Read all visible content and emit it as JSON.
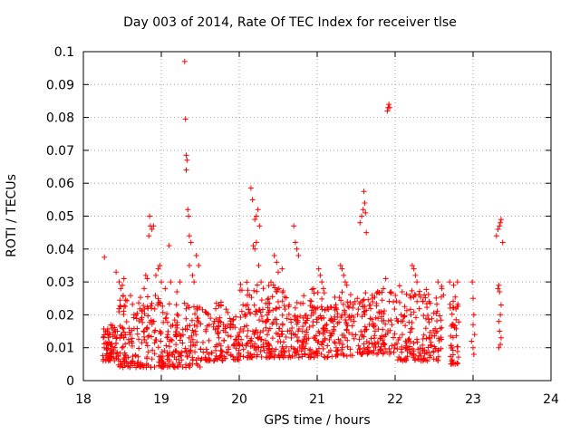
{
  "chart_data": {
    "type": "scatter",
    "title": "Day 003 of 2014, Rate Of TEC Index for receiver tlse",
    "xlabel": "GPS time / hours",
    "ylabel": "ROTI / TECUs",
    "xlim": [
      18,
      24
    ],
    "ylim": [
      0,
      0.1
    ],
    "xticks": [
      18,
      19,
      20,
      21,
      22,
      23,
      24
    ],
    "xtick_labels": [
      "18",
      "19",
      "20",
      "21",
      "22",
      "23",
      "24"
    ],
    "yticks": [
      0,
      0.01,
      0.02,
      0.03,
      0.04,
      0.05,
      0.06,
      0.07,
      0.08,
      0.09,
      0.1
    ],
    "ytick_labels": [
      "0",
      "0.01",
      "0.02",
      "0.03",
      "0.04",
      "0.05",
      "0.06",
      "0.07",
      "0.08",
      "0.09",
      "0.1"
    ],
    "grid": true,
    "marker": "+",
    "color": "#ff0000",
    "series": [
      {
        "name": "ROTI",
        "points": [
          [
            18.27,
            0.0375
          ],
          [
            18.42,
            0.033
          ],
          [
            18.46,
            0.03
          ],
          [
            18.48,
            0.028
          ],
          [
            18.5,
            0.029
          ],
          [
            18.52,
            0.031
          ],
          [
            18.78,
            0.028
          ],
          [
            18.8,
            0.032
          ],
          [
            18.82,
            0.031
          ],
          [
            18.84,
            0.044
          ],
          [
            18.85,
            0.05
          ],
          [
            18.86,
            0.047
          ],
          [
            18.88,
            0.046
          ],
          [
            18.9,
            0.047
          ],
          [
            18.93,
            0.032
          ],
          [
            18.96,
            0.034
          ],
          [
            18.98,
            0.035
          ],
          [
            19.0,
            0.03
          ],
          [
            19.05,
            0.028
          ],
          [
            19.1,
            0.041
          ],
          [
            19.12,
            0.03
          ],
          [
            19.2,
            0.027
          ],
          [
            19.24,
            0.03
          ],
          [
            19.3,
            0.097
          ],
          [
            19.31,
            0.0795
          ],
          [
            19.32,
            0.0685
          ],
          [
            19.33,
            0.067
          ],
          [
            19.32,
            0.064
          ],
          [
            19.34,
            0.052
          ],
          [
            19.35,
            0.05
          ],
          [
            19.36,
            0.044
          ],
          [
            19.38,
            0.042
          ],
          [
            19.36,
            0.035
          ],
          [
            19.4,
            0.032
          ],
          [
            19.42,
            0.03
          ],
          [
            19.45,
            0.038
          ],
          [
            19.48,
            0.035
          ],
          [
            20.15,
            0.0585
          ],
          [
            20.17,
            0.055
          ],
          [
            20.2,
            0.049
          ],
          [
            20.22,
            0.05
          ],
          [
            20.24,
            0.052
          ],
          [
            20.26,
            0.047
          ],
          [
            20.18,
            0.041
          ],
          [
            20.2,
            0.04
          ],
          [
            20.22,
            0.042
          ],
          [
            20.25,
            0.035
          ],
          [
            20.28,
            0.03
          ],
          [
            20.45,
            0.038
          ],
          [
            20.48,
            0.036
          ],
          [
            20.5,
            0.033
          ],
          [
            20.55,
            0.034
          ],
          [
            20.7,
            0.047
          ],
          [
            20.72,
            0.042
          ],
          [
            20.74,
            0.04
          ],
          [
            20.76,
            0.038
          ],
          [
            21.02,
            0.034
          ],
          [
            21.04,
            0.032
          ],
          [
            21.06,
            0.03
          ],
          [
            21.08,
            0.028
          ],
          [
            21.3,
            0.035
          ],
          [
            21.32,
            0.034
          ],
          [
            21.34,
            0.032
          ],
          [
            21.36,
            0.03
          ],
          [
            21.38,
            0.029
          ],
          [
            21.55,
            0.048
          ],
          [
            21.57,
            0.05
          ],
          [
            21.59,
            0.052
          ],
          [
            21.6,
            0.0575
          ],
          [
            21.61,
            0.054
          ],
          [
            21.62,
            0.051
          ],
          [
            21.63,
            0.045
          ],
          [
            21.9,
            0.082
          ],
          [
            21.91,
            0.083
          ],
          [
            21.92,
            0.084
          ],
          [
            21.93,
            0.083
          ],
          [
            21.88,
            0.031
          ],
          [
            21.85,
            0.028
          ],
          [
            22.22,
            0.035
          ],
          [
            22.24,
            0.034
          ],
          [
            22.26,
            0.032
          ],
          [
            22.28,
            0.03
          ],
          [
            22.55,
            0.03
          ],
          [
            22.6,
            0.028
          ],
          [
            22.62,
            0.026
          ],
          [
            22.7,
            0.03
          ],
          [
            22.75,
            0.029
          ],
          [
            22.8,
            0.03
          ],
          [
            22.99,
            0.03
          ],
          [
            23.0,
            0.025
          ],
          [
            23.01,
            0.02
          ],
          [
            23.0,
            0.017
          ],
          [
            23.02,
            0.014
          ],
          [
            22.98,
            0.012
          ],
          [
            23.0,
            0.01
          ],
          [
            23.01,
            0.008
          ],
          [
            23.3,
            0.044
          ],
          [
            23.32,
            0.046
          ],
          [
            23.34,
            0.047
          ],
          [
            23.35,
            0.048
          ],
          [
            23.36,
            0.049
          ],
          [
            23.38,
            0.042
          ],
          [
            23.32,
            0.028
          ],
          [
            23.33,
            0.029
          ],
          [
            23.34,
            0.027
          ],
          [
            23.36,
            0.023
          ],
          [
            23.35,
            0.02
          ],
          [
            23.33,
            0.018
          ],
          [
            23.34,
            0.015
          ],
          [
            23.36,
            0.013
          ],
          [
            23.35,
            0.011
          ],
          [
            23.33,
            0.01
          ]
        ],
        "dense_bands": [
          {
            "x_range": [
              18.25,
              18.45
            ],
            "y_range": [
              0.006,
              0.018
            ],
            "n": 70
          },
          {
            "x_range": [
              18.45,
              19.0
            ],
            "y_range": [
              0.004,
              0.026
            ],
            "n": 170
          },
          {
            "x_range": [
              19.0,
              19.5
            ],
            "y_range": [
              0.004,
              0.025
            ],
            "n": 150
          },
          {
            "x_range": [
              19.5,
              20.0
            ],
            "y_range": [
              0.006,
              0.024
            ],
            "n": 130
          },
          {
            "x_range": [
              20.0,
              20.5
            ],
            "y_range": [
              0.007,
              0.03
            ],
            "n": 160
          },
          {
            "x_range": [
              20.5,
              21.0
            ],
            "y_range": [
              0.007,
              0.028
            ],
            "n": 150
          },
          {
            "x_range": [
              21.0,
              21.5
            ],
            "y_range": [
              0.007,
              0.027
            ],
            "n": 140
          },
          {
            "x_range": [
              21.5,
              22.0
            ],
            "y_range": [
              0.008,
              0.027
            ],
            "n": 140
          },
          {
            "x_range": [
              22.0,
              22.6
            ],
            "y_range": [
              0.006,
              0.029
            ],
            "n": 170
          },
          {
            "x_range": [
              22.7,
              22.82
            ],
            "y_range": [
              0.005,
              0.028
            ],
            "n": 45
          }
        ]
      }
    ]
  }
}
